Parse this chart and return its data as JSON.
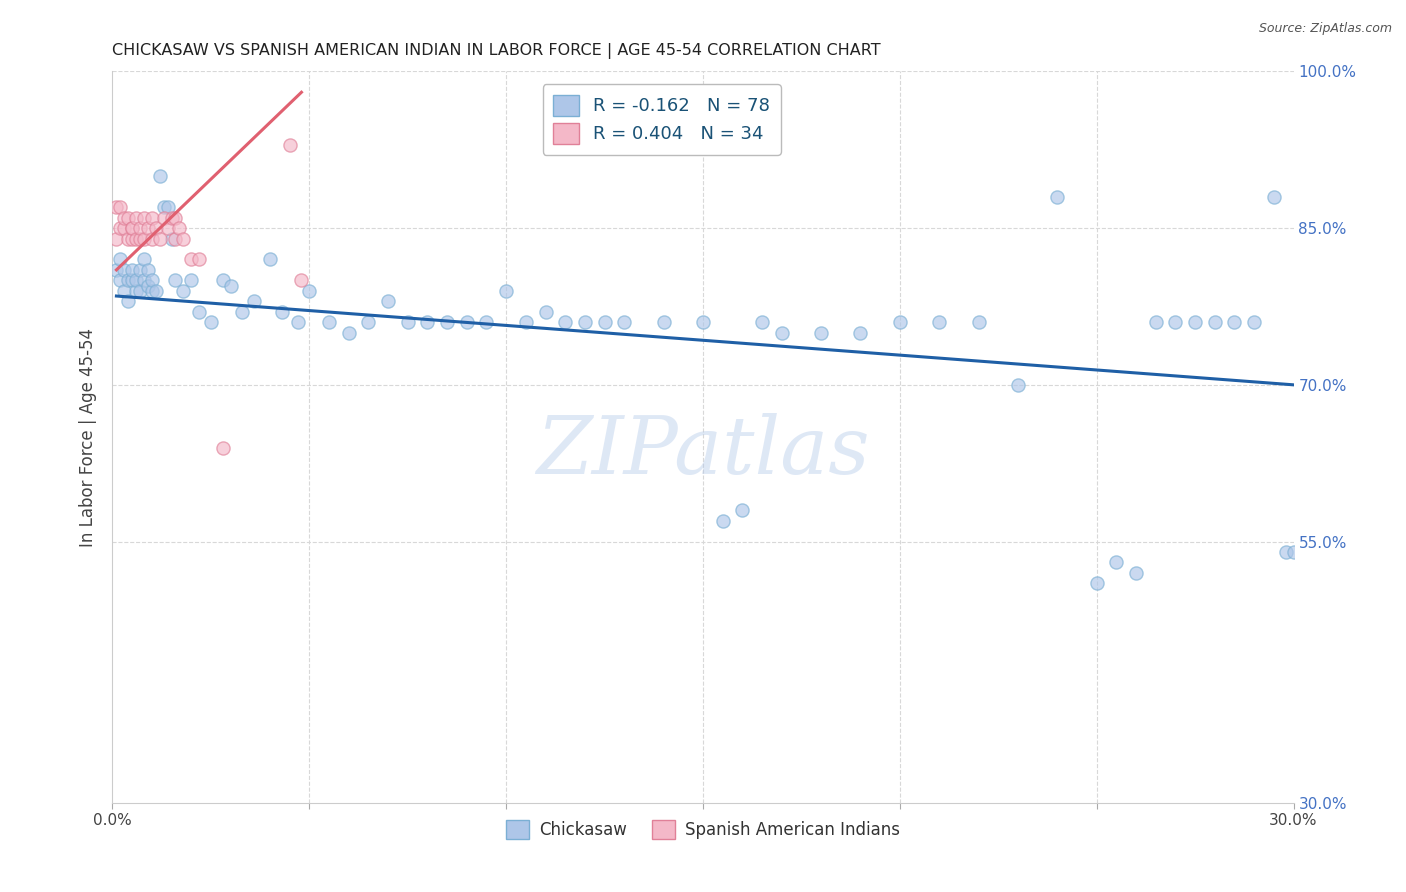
{
  "title": "CHICKASAW VS SPANISH AMERICAN INDIAN IN LABOR FORCE | AGE 45-54 CORRELATION CHART",
  "source": "Source: ZipAtlas.com",
  "ylabel": "In Labor Force | Age 45-54",
  "xlim": [
    0.0,
    0.3
  ],
  "ylim": [
    0.3,
    1.0
  ],
  "blue_color": "#aec6e8",
  "blue_edge_color": "#7bafd4",
  "pink_color": "#f4b8c8",
  "pink_edge_color": "#e08098",
  "blue_line_color": "#1f5fa6",
  "pink_line_color": "#e06070",
  "grid_color": "#d8d8d8",
  "watermark": "ZIPatlas",
  "legend_label_blue": "Chickasaw",
  "legend_label_pink": "Spanish American Indians",
  "marker_size": 90,
  "marker_alpha": 0.65,
  "blue_x": [
    0.001,
    0.002,
    0.002,
    0.003,
    0.003,
    0.004,
    0.004,
    0.005,
    0.005,
    0.006,
    0.006,
    0.007,
    0.007,
    0.008,
    0.008,
    0.009,
    0.009,
    0.01,
    0.01,
    0.011,
    0.012,
    0.013,
    0.014,
    0.015,
    0.016,
    0.018,
    0.02,
    0.022,
    0.025,
    0.028,
    0.03,
    0.033,
    0.036,
    0.04,
    0.043,
    0.047,
    0.05,
    0.055,
    0.06,
    0.065,
    0.07,
    0.075,
    0.08,
    0.085,
    0.09,
    0.095,
    0.1,
    0.105,
    0.11,
    0.115,
    0.12,
    0.125,
    0.13,
    0.14,
    0.15,
    0.155,
    0.16,
    0.165,
    0.17,
    0.18,
    0.19,
    0.2,
    0.21,
    0.22,
    0.23,
    0.24,
    0.25,
    0.255,
    0.26,
    0.265,
    0.27,
    0.275,
    0.28,
    0.285,
    0.29,
    0.295,
    0.298,
    0.3
  ],
  "blue_y": [
    0.81,
    0.8,
    0.82,
    0.79,
    0.81,
    0.8,
    0.78,
    0.8,
    0.81,
    0.79,
    0.8,
    0.81,
    0.79,
    0.8,
    0.82,
    0.795,
    0.81,
    0.79,
    0.8,
    0.79,
    0.9,
    0.87,
    0.87,
    0.84,
    0.8,
    0.79,
    0.8,
    0.77,
    0.76,
    0.8,
    0.795,
    0.77,
    0.78,
    0.82,
    0.77,
    0.76,
    0.79,
    0.76,
    0.75,
    0.76,
    0.78,
    0.76,
    0.76,
    0.76,
    0.76,
    0.76,
    0.79,
    0.76,
    0.77,
    0.76,
    0.76,
    0.76,
    0.76,
    0.76,
    0.76,
    0.57,
    0.58,
    0.76,
    0.75,
    0.75,
    0.75,
    0.76,
    0.76,
    0.76,
    0.7,
    0.88,
    0.51,
    0.53,
    0.52,
    0.76,
    0.76,
    0.76,
    0.76,
    0.76,
    0.76,
    0.88,
    0.54,
    0.54
  ],
  "pink_x": [
    0.001,
    0.001,
    0.002,
    0.002,
    0.003,
    0.003,
    0.004,
    0.004,
    0.005,
    0.005,
    0.005,
    0.006,
    0.006,
    0.007,
    0.007,
    0.008,
    0.008,
    0.009,
    0.01,
    0.01,
    0.011,
    0.012,
    0.013,
    0.014,
    0.015,
    0.016,
    0.016,
    0.017,
    0.018,
    0.02,
    0.022,
    0.028,
    0.045,
    0.048
  ],
  "pink_y": [
    0.84,
    0.87,
    0.85,
    0.87,
    0.85,
    0.86,
    0.84,
    0.86,
    0.84,
    0.85,
    0.85,
    0.84,
    0.86,
    0.84,
    0.85,
    0.84,
    0.86,
    0.85,
    0.84,
    0.86,
    0.85,
    0.84,
    0.86,
    0.85,
    0.86,
    0.84,
    0.86,
    0.85,
    0.84,
    0.82,
    0.82,
    0.64,
    0.93,
    0.8
  ],
  "blue_line_x0": 0.001,
  "blue_line_x1": 0.3,
  "blue_line_y0": 0.785,
  "blue_line_y1": 0.7,
  "pink_line_x0": 0.001,
  "pink_line_x1": 0.048,
  "pink_line_y0": 0.81,
  "pink_line_y1": 0.98
}
